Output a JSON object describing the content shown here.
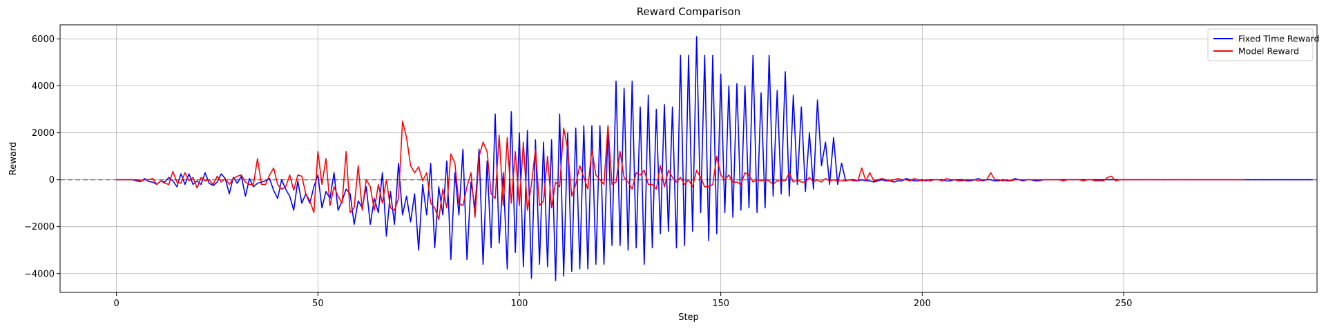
{
  "chart_data": {
    "type": "line",
    "title": "Reward Comparison",
    "xlabel": "Step",
    "ylabel": "Reward",
    "xlim": [
      -14,
      298
    ],
    "ylim": [
      -4800,
      6600
    ],
    "xticks": [
      0,
      50,
      100,
      150,
      200,
      250
    ],
    "yticks": [
      -4000,
      -2000,
      0,
      2000,
      4000,
      6000
    ],
    "grid": true,
    "legend_position": "top-right",
    "reference_line": {
      "y": 0,
      "style": "dashed",
      "color": "#7f7f7f"
    },
    "series": [
      {
        "name": "Fixed Time Reward",
        "color": "#0000ff",
        "start_x": 0,
        "values": [
          0,
          0,
          0,
          0,
          0,
          -50,
          -80,
          50,
          -80,
          -100,
          -200,
          -50,
          -100,
          100,
          -50,
          -300,
          250,
          -200,
          250,
          -200,
          -50,
          -200,
          300,
          -150,
          -250,
          -100,
          250,
          50,
          -600,
          100,
          -150,
          150,
          -700,
          50,
          -300,
          -150,
          -100,
          -50,
          50,
          -450,
          -800,
          0,
          -400,
          -700,
          -1300,
          -50,
          -1000,
          -600,
          -1000,
          -300,
          200,
          -1200,
          -500,
          -800,
          300,
          -1300,
          -900,
          -400,
          -600,
          -1900,
          -900,
          -1200,
          -300,
          -1900,
          -800,
          -1400,
          300,
          -2400,
          -500,
          -1900,
          700,
          -1500,
          -700,
          -1800,
          -600,
          -3000,
          -200,
          -1500,
          700,
          -2900,
          -300,
          -1500,
          800,
          -3400,
          300,
          -1500,
          1300,
          -3400,
          -100,
          -1200,
          1300,
          -3600,
          800,
          -2900,
          2800,
          -2700,
          300,
          -3800,
          2900,
          -3100,
          2000,
          -3700,
          2100,
          -4200,
          1700,
          -3600,
          1600,
          -3700,
          1700,
          -4300,
          2800,
          -4100,
          2000,
          -3900,
          2200,
          -3800,
          2300,
          -3800,
          2300,
          -3600,
          2300,
          -3600,
          2300,
          -2800,
          4200,
          -2800,
          3900,
          -3000,
          4200,
          -2900,
          3100,
          -3600,
          3600,
          -2900,
          3000,
          -2300,
          3200,
          -2200,
          3100,
          -2900,
          5300,
          -2800,
          5300,
          -2200,
          6100,
          -1400,
          5300,
          -2600,
          5300,
          -2300,
          4500,
          -1400,
          4000,
          -1600,
          4100,
          -1300,
          4000,
          -1200,
          5300,
          -1400,
          3700,
          -1200,
          5300,
          -700,
          3800,
          -600,
          4600,
          -700,
          3600,
          -200,
          3100,
          -500,
          2000,
          -400,
          3400,
          600,
          1600,
          -200,
          1800,
          -200,
          700,
          -50,
          0,
          0,
          -50,
          0,
          -50,
          -50,
          -100,
          -50,
          0,
          -50,
          -50,
          -100,
          -50,
          -50,
          50,
          0,
          -50,
          -50,
          0,
          -50,
          0,
          0,
          0,
          0,
          -50,
          -50,
          0,
          0,
          0,
          -50,
          -50,
          0,
          50,
          -50,
          0,
          0,
          -50,
          -50,
          0,
          -50,
          -50,
          50,
          0,
          -50,
          0,
          0,
          -50,
          -50,
          0,
          0,
          0,
          0,
          0,
          0,
          0,
          0,
          0,
          0,
          0,
          0,
          0,
          0,
          0,
          0,
          0,
          0,
          0,
          0,
          0,
          0,
          0,
          0,
          0,
          0,
          0,
          0,
          0,
          0,
          0,
          0,
          0,
          0,
          0,
          0,
          0,
          0,
          0,
          0,
          0,
          0,
          0,
          0,
          0,
          0,
          0,
          0,
          0,
          0,
          0,
          0,
          0,
          0,
          0,
          0,
          0,
          0,
          0,
          0,
          0,
          0,
          0,
          0,
          0,
          0,
          0,
          0
        ]
      },
      {
        "name": "Model Reward",
        "color": "#ff0000",
        "start_x": 0,
        "values": [
          0,
          0,
          0,
          0,
          0,
          0,
          -50,
          0,
          0,
          50,
          -200,
          -50,
          -150,
          -200,
          350,
          -100,
          -150,
          300,
          -50,
          100,
          -350,
          100,
          -50,
          0,
          -200,
          150,
          -100,
          50,
          -200,
          50,
          150,
          200,
          -100,
          -200,
          -200,
          900,
          -200,
          -200,
          200,
          500,
          -200,
          -400,
          -300,
          200,
          -450,
          200,
          150,
          -600,
          -900,
          -1400,
          1200,
          -200,
          900,
          -1100,
          -300,
          -700,
          -1000,
          1200,
          -1400,
          -1200,
          600,
          -1300,
          0,
          -300,
          -1300,
          -200,
          -1000,
          0,
          -1200,
          -1300,
          -800,
          2500,
          1800,
          600,
          300,
          550,
          -50,
          300,
          -1000,
          -1200,
          -1700,
          -400,
          -1200,
          1100,
          700,
          -1000,
          -1100,
          -300,
          300,
          -1600,
          1000,
          1600,
          1200,
          -600,
          -800,
          1900,
          -1100,
          1800,
          -1000,
          1200,
          -1100,
          1600,
          -1300,
          -200,
          1300,
          -1100,
          -900,
          1000,
          -1200,
          -100,
          -300,
          2200,
          1300,
          -700,
          -200,
          600,
          100,
          -400,
          1300,
          200,
          0,
          -200,
          2300,
          -200,
          -100,
          1200,
          100,
          -100,
          -400,
          300,
          200,
          400,
          -200,
          -200,
          -400,
          600,
          -300,
          400,
          100,
          -100,
          100,
          -200,
          0,
          -300,
          400,
          100,
          -300,
          -300,
          -200,
          1000,
          200,
          0,
          200,
          -100,
          -100,
          -200,
          300,
          200,
          -100,
          0,
          -50,
          0,
          -50,
          -200,
          -50,
          -50,
          -50,
          300,
          -100,
          0,
          -100,
          -100,
          100,
          -100,
          0,
          -100,
          50,
          -50,
          0,
          -50,
          -50,
          -50,
          0,
          -50,
          -50,
          500,
          -50,
          300,
          -50,
          0,
          50,
          0,
          -50,
          0,
          50,
          0,
          0,
          -50,
          50,
          0,
          -50,
          0,
          -50,
          0,
          0,
          -50,
          50,
          0,
          0,
          -50,
          -50,
          0,
          0,
          0,
          -50,
          0,
          0,
          300,
          0,
          0,
          -50,
          0,
          -50,
          0,
          0,
          0,
          0,
          0,
          0,
          0,
          0,
          0,
          0,
          0,
          0,
          -50,
          0,
          0,
          0,
          0,
          -50,
          0,
          0,
          -50,
          -50,
          -50,
          100,
          150,
          -50,
          0,
          0,
          0,
          0,
          0,
          0,
          0,
          0,
          0,
          0,
          0,
          0,
          0,
          0,
          0,
          0,
          0,
          0,
          0,
          0,
          0,
          0,
          0,
          0,
          0,
          0,
          0,
          0,
          0,
          0,
          0,
          0
        ]
      }
    ]
  }
}
